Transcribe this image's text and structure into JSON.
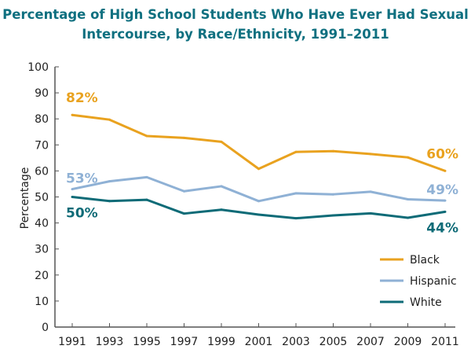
{
  "chart_data": {
    "type": "line",
    "title_lines": [
      "Percentage of High School Students Who Have Ever Had Sexual",
      "Intercourse, by Race/Ethnicity, 1991–2011"
    ],
    "xlabel": "",
    "ylabel": "Percentage",
    "ylim": [
      0,
      100
    ],
    "yticks": [
      0,
      10,
      20,
      30,
      40,
      50,
      60,
      70,
      80,
      90,
      100
    ],
    "x": [
      "1991",
      "1993",
      "1995",
      "1997",
      "1999",
      "2001",
      "2003",
      "2005",
      "2007",
      "2009",
      "2011"
    ],
    "grid": false,
    "legend_position": "bottom-right",
    "series": [
      {
        "name": "Black",
        "color": "#e9a21f",
        "values": [
          81.5,
          79.7,
          73.4,
          72.7,
          71.2,
          60.8,
          67.3,
          67.6,
          66.5,
          65.2,
          60.0
        ],
        "start_label": "82%",
        "end_label": "60%"
      },
      {
        "name": "Hispanic",
        "color": "#8fb1d5",
        "values": [
          53.0,
          56.0,
          57.6,
          52.2,
          54.1,
          48.4,
          51.4,
          51.0,
          52.0,
          49.1,
          48.6
        ],
        "start_label": "53%",
        "end_label": "49%"
      },
      {
        "name": "White",
        "color": "#0e6b77",
        "values": [
          50.0,
          48.4,
          48.9,
          43.6,
          45.1,
          43.2,
          41.8,
          42.9,
          43.7,
          42.0,
          44.3
        ],
        "start_label": "50%",
        "end_label": "44%"
      }
    ]
  }
}
